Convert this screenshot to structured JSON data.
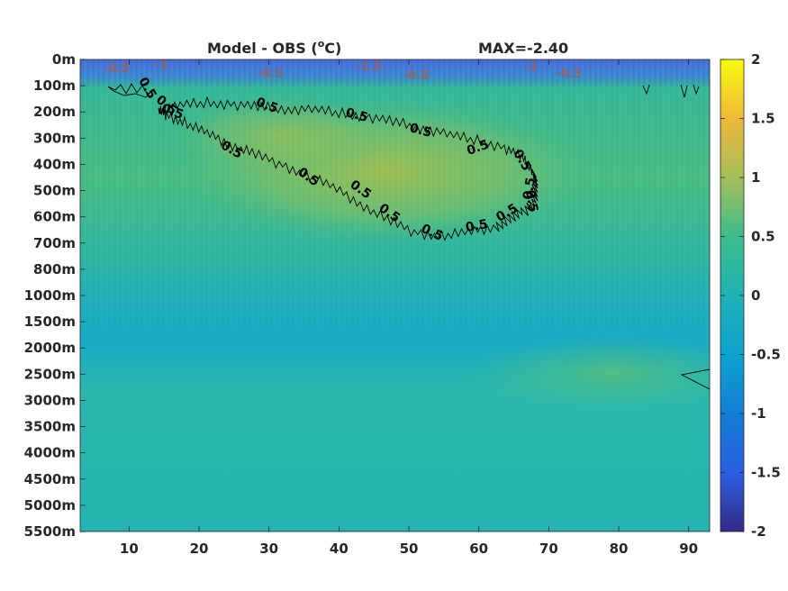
{
  "chart_data": {
    "type": "heatmap",
    "title_left": "Model - OBS (",
    "title_unit_sup": "o",
    "title_unit_after": "C)",
    "title_right": "MAX=-2.40",
    "xlabel": "",
    "ylabel": "",
    "x_ticks": [
      "10",
      "20",
      "30",
      "40",
      "50",
      "60",
      "70",
      "80",
      "90"
    ],
    "x_tick_values": [
      10,
      20,
      30,
      40,
      50,
      60,
      70,
      80,
      90
    ],
    "xlim": [
      3,
      93
    ],
    "y_ticks": [
      "0m",
      "100m",
      "200m",
      "300m",
      "400m",
      "500m",
      "600m",
      "700m",
      "800m",
      "1000m",
      "1500m",
      "2000m",
      "2500m",
      "3000m",
      "3500m",
      "4000m",
      "4500m",
      "5000m",
      "5500m"
    ],
    "colorbar": {
      "range": [
        -2,
        2
      ],
      "ticks": [
        "2",
        "1.5",
        "1",
        "0.5",
        "0",
        "-0.5",
        "-1",
        "-1.5",
        "-2"
      ],
      "colormap": "parula"
    },
    "contour_level": 0.5,
    "contour_labels": [
      "0.5",
      "0.5",
      "0.5",
      "0.5",
      "0.5",
      "0.5",
      "0.5",
      "0.5",
      "0.5",
      "0.5",
      "0.5",
      "0.5",
      "0.5",
      "0.5",
      "0.5",
      "0.5",
      "0.5"
    ],
    "top_labels": [
      "-0.5",
      "-1",
      "-0.5",
      "-1.5",
      "-0.5",
      "-1",
      "-0.5"
    ],
    "approx_values": {
      "surface_0_100m": -1.0,
      "core_300_500m": 0.8,
      "upper_ocean": 0.3,
      "band_1500_2000m": -0.15,
      "deep_2500_3000m_east": 0.4,
      "abyssal": 0.05
    }
  }
}
